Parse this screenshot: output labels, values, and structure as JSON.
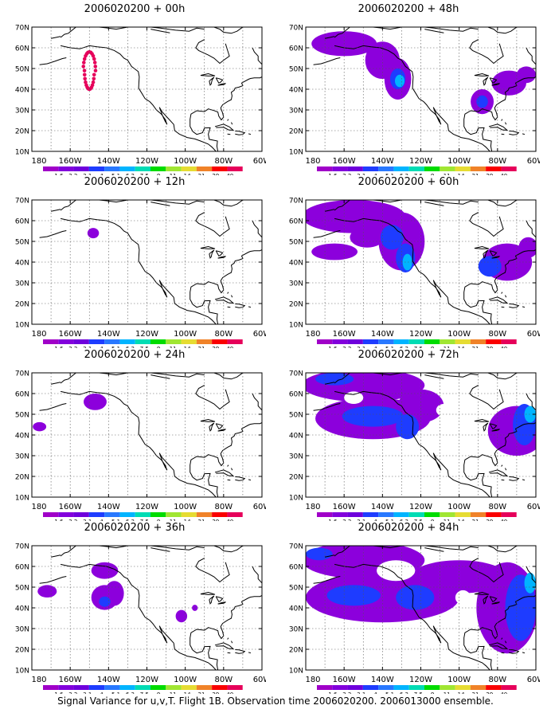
{
  "legend": {
    "labels": [
      "1.6",
      "2.2",
      "3.1",
      "4",
      "5.1",
      "6.3",
      "7.5",
      "9",
      "11",
      "14",
      "21",
      "29",
      "40"
    ],
    "colors": [
      "#a000c8",
      "#8200dc",
      "#6e00dc",
      "#1e3cff",
      "#2878ff",
      "#00b4ff",
      "#00dcb4",
      "#00dc00",
      "#a0e632",
      "#e6dc32",
      "#f08228",
      "#fa0000",
      "#e6005a"
    ]
  },
  "axis": {
    "y_ticks": [
      "70N",
      "60N",
      "50N",
      "40N",
      "30N",
      "20N",
      "10N"
    ],
    "x_ticks": [
      "180",
      "160W",
      "140W",
      "120W",
      "100W",
      "80W",
      "60W"
    ]
  },
  "panels": [
    {
      "title": "2006020200 + 00h",
      "level": 0
    },
    {
      "title": "2006020200 + 48h",
      "level": 4
    },
    {
      "title": "2006020200 + 12h",
      "level": 1
    },
    {
      "title": "2006020200 + 60h",
      "level": 5
    },
    {
      "title": "2006020200 + 24h",
      "level": 2
    },
    {
      "title": "2006020200 + 72h",
      "level": 6
    },
    {
      "title": "2006020200 + 36h",
      "level": 3
    },
    {
      "title": "2006020200 + 84h",
      "level": 7
    }
  ],
  "footer": "Signal Variance for u,v,T. Flight 1B. Observation time 2006020200. 2006013000 ensemble.",
  "colors": {
    "variance_magenta": "#8c00dc",
    "variance_blue": "#1e3cff",
    "variance_cyan": "#00b4ff",
    "observation_points": "#e6005a"
  }
}
